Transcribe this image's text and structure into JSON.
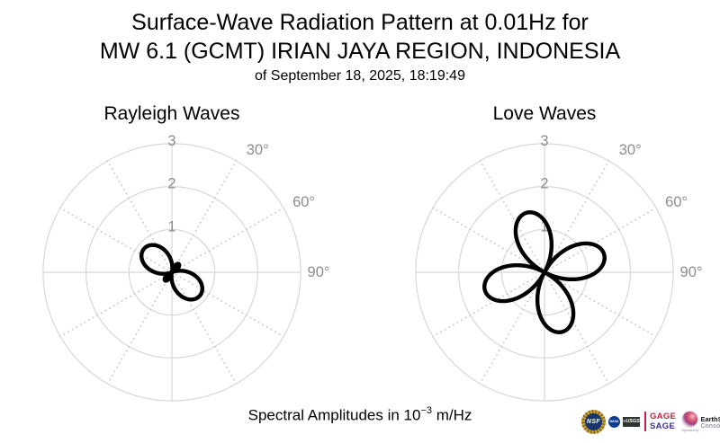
{
  "title": {
    "line1": "Surface-Wave Radiation Pattern at 0.01Hz for",
    "line2": "MW 6.1 (GCMT) IRIAN JAYA REGION, INDONESIA",
    "line3": "of September 18, 2025, 18:19:49"
  },
  "footer": {
    "text_before_exponent": "Spectral Amplitudes in 10",
    "exponent": "−3",
    "text_after_exponent": " m/Hz"
  },
  "logos": {
    "nsf_label": "NSF",
    "nasa_label": "NASA",
    "usgs_label": "≡USGS",
    "gage_label": "GAGE",
    "sage_label": "SAGE",
    "earthscope_name": "EarthScope",
    "earthscope_sub": "Consortium",
    "operated_by": "Operated by"
  },
  "colors": {
    "curve": "#000000",
    "grid": "#d7d7d7",
    "tick_label": "#8d8d8d",
    "gage_red": "#c32240",
    "sage_purple": "#3f2d91",
    "background": "#ffffff"
  },
  "chart_data": [
    {
      "type": "line",
      "subtype": "polar-radiation-pattern",
      "title": "Rayleigh Waves",
      "rlim": [
        0,
        3
      ],
      "radial_ticks": [
        1,
        2,
        3
      ],
      "angle_ticks": [
        {
          "deg": 30,
          "label": "30°"
        },
        {
          "deg": 60,
          "label": "60°"
        },
        {
          "deg": 90,
          "label": "90°"
        }
      ],
      "spoke_step_deg": 30,
      "angle_convention": "azimuth clockwise from top (North)",
      "grid": true,
      "pattern": {
        "model": "r(az) = |A + B*cos(2*(az - az0)) + C*sin(2*(az - az0))|",
        "A": 0.3,
        "B": 0.55,
        "C": 0,
        "az0_deg": 130,
        "major_lobes": [
          {
            "azimuth_deg": 130,
            "amplitude": 0.85
          },
          {
            "azimuth_deg": 310,
            "amplitude": 0.85
          }
        ],
        "minor_lobes": [
          {
            "azimuth_deg": 40,
            "amplitude": 0.25
          },
          {
            "azimuth_deg": 220,
            "amplitude": 0.25
          }
        ]
      }
    },
    {
      "type": "line",
      "subtype": "polar-radiation-pattern",
      "title": "Love Waves",
      "rlim": [
        0,
        3
      ],
      "radial_ticks": [
        1,
        2,
        3
      ],
      "angle_ticks": [
        {
          "deg": 30,
          "label": "30°"
        },
        {
          "deg": 60,
          "label": "60°"
        },
        {
          "deg": 90,
          "label": "90°"
        }
      ],
      "spoke_step_deg": 30,
      "angle_convention": "azimuth clockwise from top (North)",
      "grid": true,
      "pattern": {
        "model": "r(az) = |A + B*cos(2*(az - az0)) + C*sin(2*(az - az0))|",
        "A": 0,
        "B": 0,
        "C": 1.45,
        "az0_deg": 28,
        "major_lobes": [
          {
            "azimuth_deg": 73,
            "amplitude": 1.45
          },
          {
            "azimuth_deg": 163,
            "amplitude": 1.45
          },
          {
            "azimuth_deg": 253,
            "amplitude": 1.45
          },
          {
            "azimuth_deg": 343,
            "amplitude": 1.45
          }
        ],
        "minor_lobes": []
      }
    }
  ]
}
